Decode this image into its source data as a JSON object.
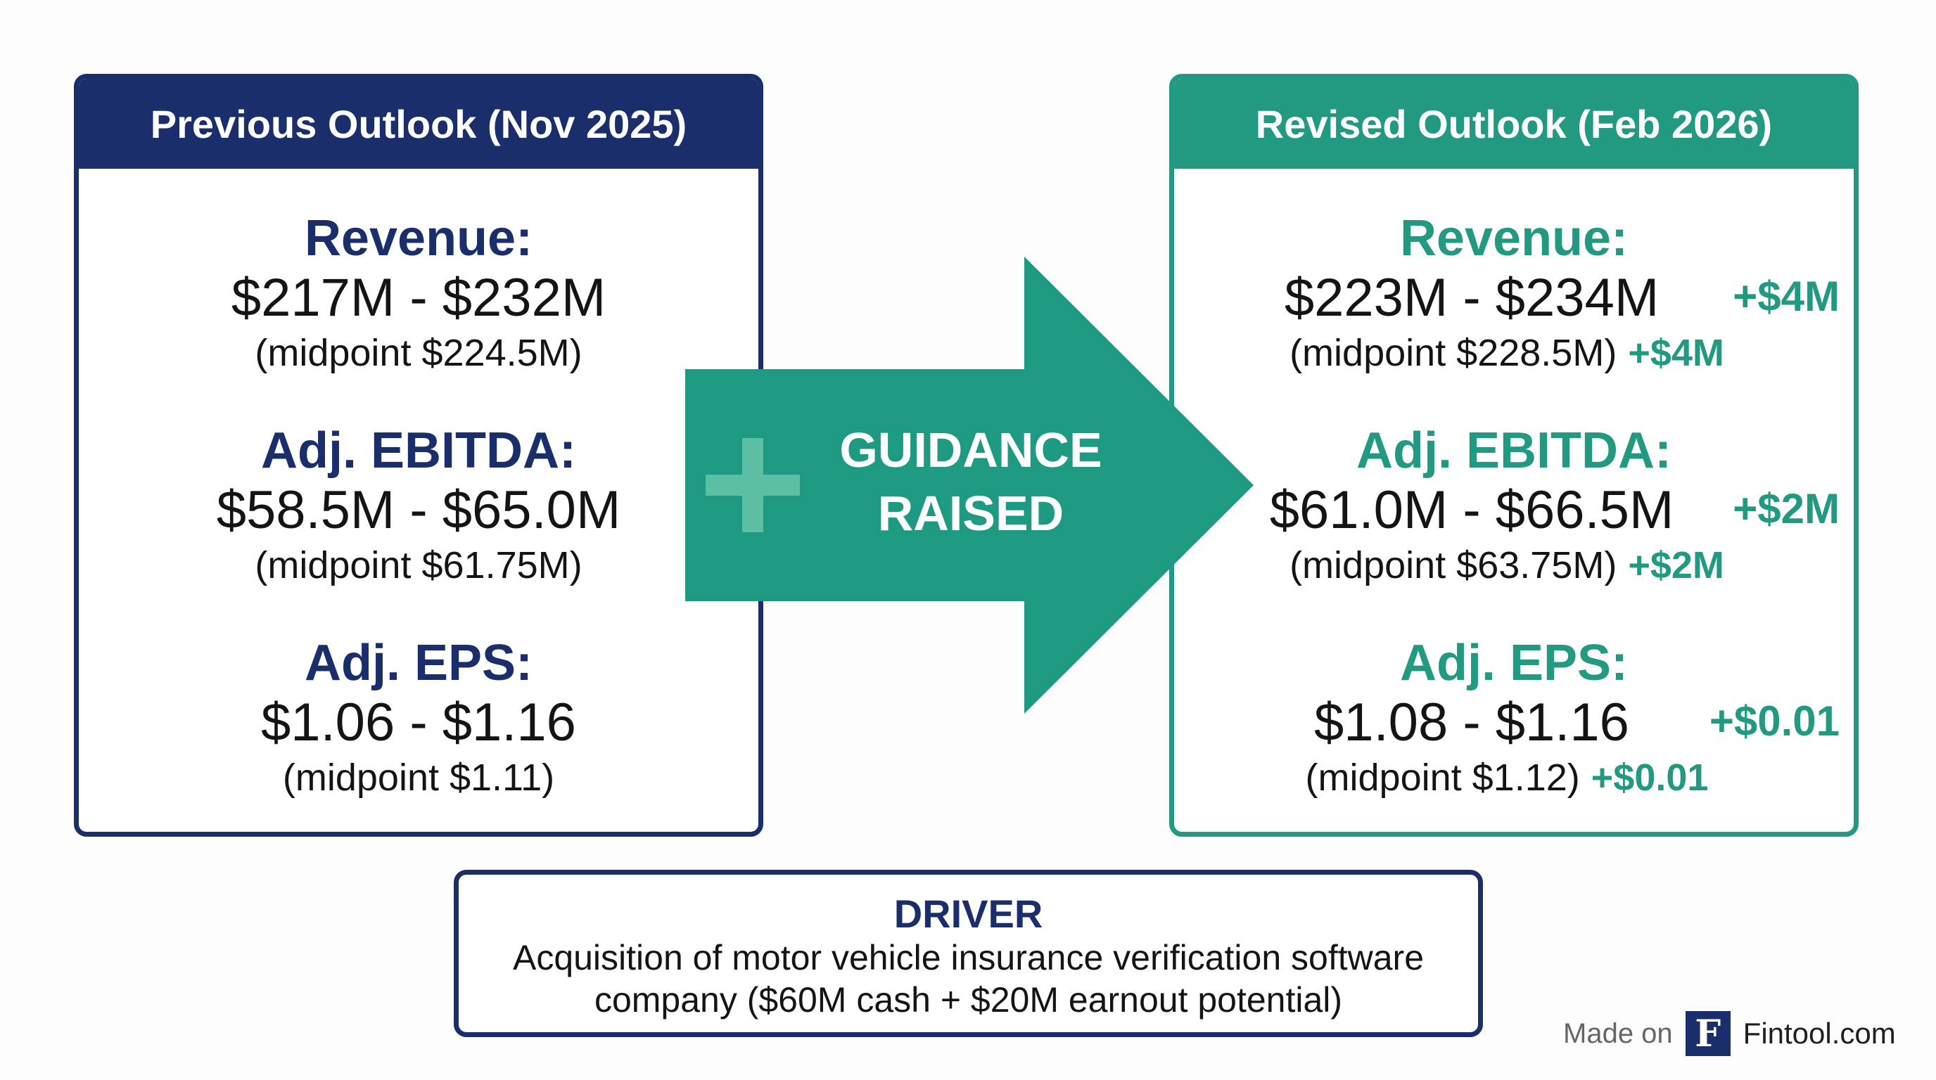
{
  "previous": {
    "title": "Previous Outlook (Nov 2025)",
    "metrics": [
      {
        "label": "Revenue:",
        "range": "$217M - $232M",
        "midpoint": "(midpoint $224.5M)"
      },
      {
        "label": "Adj. EBITDA:",
        "range": "$58.5M - $65.0M",
        "midpoint": "(midpoint $61.75M)"
      },
      {
        "label": "Adj. EPS:",
        "range": "$1.06 - $1.16",
        "midpoint": "(midpoint $1.11)"
      }
    ]
  },
  "revised": {
    "title": "Revised Outlook (Feb 2026)",
    "metrics": [
      {
        "label": "Revenue:",
        "range": "$223M - $234M",
        "range_delta": "+$4M",
        "midpoint": "(midpoint $228.5M)",
        "midpoint_delta": "+$4M"
      },
      {
        "label": "Adj. EBITDA:",
        "range": "$61.0M - $66.5M",
        "range_delta": "+$2M",
        "midpoint": "(midpoint $63.75M)",
        "midpoint_delta": "+$2M"
      },
      {
        "label": "Adj. EPS:",
        "range": "$1.08 - $1.16",
        "range_delta": "+$0.01",
        "midpoint": "(midpoint $1.12)",
        "midpoint_delta": "+$0.01"
      }
    ]
  },
  "arrow": {
    "line1": "GUIDANCE",
    "line2": "RAISED",
    "icon": "plus-icon"
  },
  "driver": {
    "title": "DRIVER",
    "text": "Acquisition of motor vehicle insurance verification software company ($60M cash + $20M earnout potential)"
  },
  "credit": {
    "made_on": "Made on",
    "logo_letter": "F",
    "brand": "Fintool.com"
  },
  "colors": {
    "navy": "#1a2e6b",
    "teal": "#229981",
    "arrow_teal": "#1f9a82",
    "plus_teal": "#5cbfa3"
  }
}
